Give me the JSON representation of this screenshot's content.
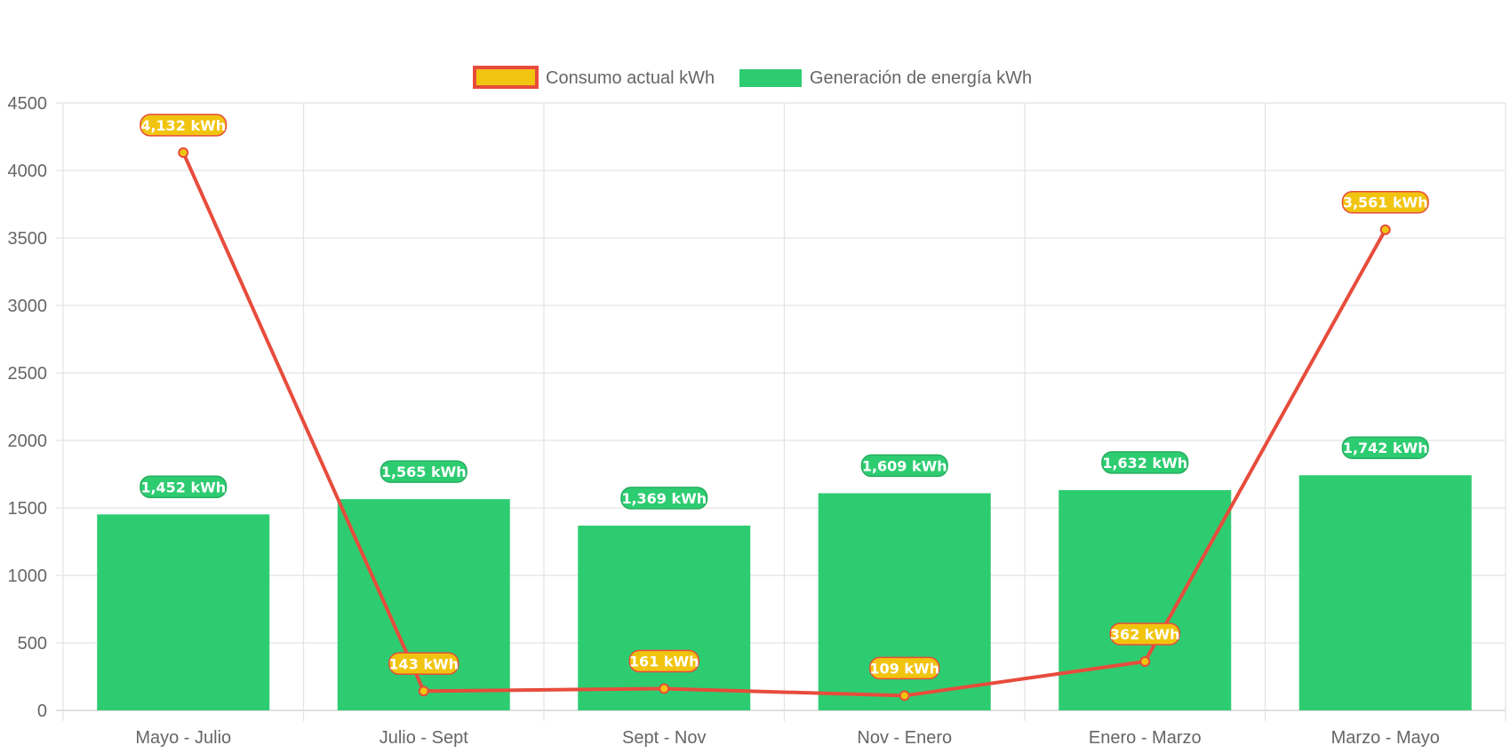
{
  "chart_data": {
    "type": "bar",
    "categories": [
      "Mayo - Julio",
      "Julio - Sept",
      "Sept - Nov",
      "Nov - Enero",
      "Enero - Marzo",
      "Marzo - Mayo"
    ],
    "ylim": [
      0,
      4500
    ],
    "yticks": [
      0,
      500,
      1000,
      1500,
      2000,
      2500,
      3000,
      3500,
      4000,
      4500
    ],
    "grid": true,
    "legend_position": "top-center",
    "series": [
      {
        "name": "Consumo actual kWh",
        "type": "line",
        "values": [
          4132,
          143,
          161,
          109,
          362,
          3561
        ],
        "labels": [
          "4,132 kWh",
          "143 kWh",
          "161 kWh",
          "109 kWh",
          "362 kWh",
          "3,561 kWh"
        ],
        "color": "#e74c3c",
        "fill_color": "#f1c40f"
      },
      {
        "name": "Generación de energía kWh",
        "type": "bar",
        "values": [
          1452,
          1565,
          1369,
          1609,
          1632,
          1742
        ],
        "labels": [
          "1,452 kWh",
          "1,565 kWh",
          "1,369 kWh",
          "1,609 kWh",
          "1,632 kWh",
          "1,742 kWh"
        ],
        "color": "#2ecc71",
        "label_border": "#27ae60"
      }
    ]
  }
}
